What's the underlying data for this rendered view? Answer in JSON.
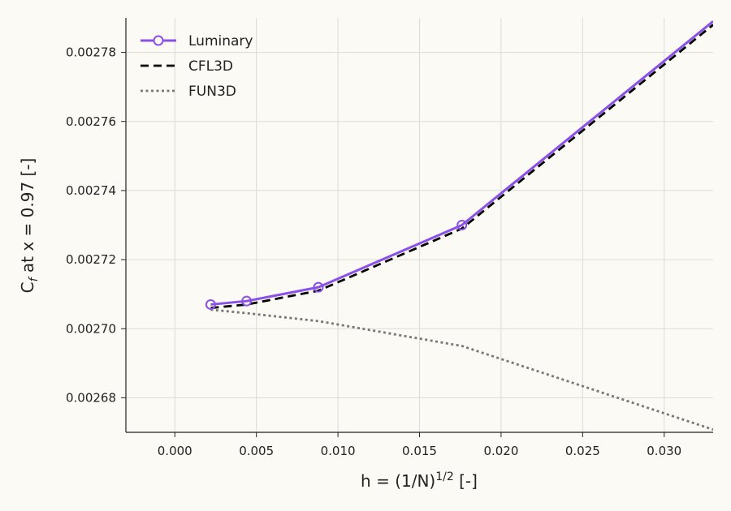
{
  "chart_data": {
    "type": "line",
    "xlabel": {
      "base": "h = (1/N)",
      "sup": "1/2",
      "suffix": " [-]"
    },
    "ylabel": {
      "prefix": "C",
      "sub": "f",
      "suffix": " at x = 0.97 [-]"
    },
    "xlim": [
      -0.003,
      0.033
    ],
    "ylim": [
      0.00267,
      0.00279
    ],
    "x_ticks": [
      0.0,
      0.005,
      0.01,
      0.015,
      0.02,
      0.025,
      0.03
    ],
    "x_tick_labels": [
      "0.000",
      "0.005",
      "0.010",
      "0.015",
      "0.020",
      "0.025",
      "0.030"
    ],
    "y_ticks": [
      0.00268,
      0.0027,
      0.00272,
      0.00274,
      0.00276,
      0.00278
    ],
    "y_tick_labels": [
      "0.00268",
      "0.00270",
      "0.00272",
      "0.00274",
      "0.00276",
      "0.00278"
    ],
    "grid": true,
    "legend_position": "top-left",
    "series": [
      {
        "name": "Luminary",
        "color": "#8b50e8",
        "style": "solid",
        "marker": "open-circle",
        "x": [
          0.0022,
          0.0044,
          0.0088,
          0.0176,
          0.033
        ],
        "y": [
          0.002707,
          0.002708,
          0.002712,
          0.00273,
          0.002789
        ]
      },
      {
        "name": "CFL3D",
        "color": "#000000",
        "style": "dashed",
        "marker": "none",
        "x": [
          0.0022,
          0.0044,
          0.0088,
          0.0176,
          0.033
        ],
        "y": [
          0.002706,
          0.002707,
          0.002711,
          0.002729,
          0.002788
        ]
      },
      {
        "name": "FUN3D",
        "color": "#777777",
        "style": "dotted",
        "marker": "none",
        "x": [
          0.0022,
          0.0044,
          0.0088,
          0.0176,
          0.033
        ],
        "y": [
          0.0027055,
          0.0027045,
          0.0027022,
          0.002695,
          0.0026708
        ]
      }
    ]
  }
}
